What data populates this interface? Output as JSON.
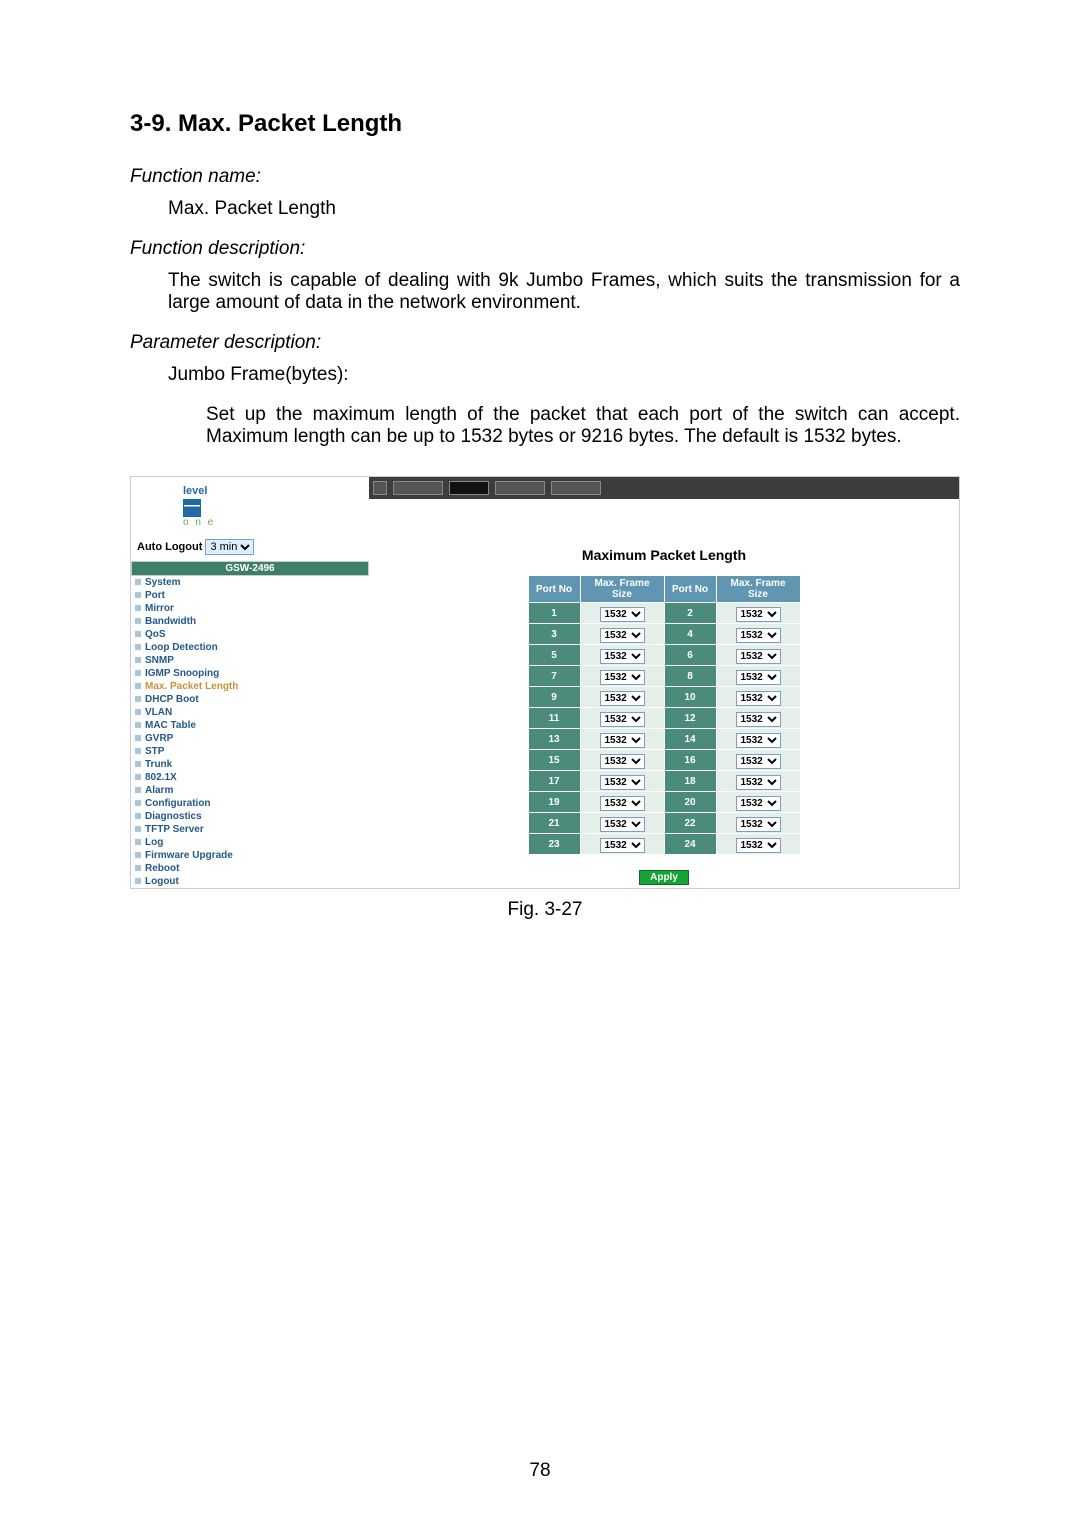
{
  "section": {
    "title": "3-9. Max. Packet Length",
    "function_name_label": "Function name:",
    "function_name_value": "Max. Packet Length",
    "function_desc_label": "Function description:",
    "function_desc_value": "The switch is capable of dealing with 9k Jumbo Frames, which suits the transmission for a large amount of data in the network environment.",
    "param_desc_label": "Parameter description:",
    "param_item_label": "Jumbo Frame(bytes):",
    "param_item_value": "Set up the maximum length of the packet that each port of the switch can accept. Maximum length can be up to 1532 bytes or 9216 bytes. The default is 1532 bytes."
  },
  "screenshot": {
    "logo_text": "level",
    "logo_sub": "o n e",
    "auto_logout_label": "Auto Logout",
    "auto_logout_value": "3 min",
    "device_name": "GSW-2496",
    "nav_items": [
      {
        "label": "System",
        "active": false
      },
      {
        "label": "Port",
        "active": false
      },
      {
        "label": "Mirror",
        "active": false
      },
      {
        "label": "Bandwidth",
        "active": false
      },
      {
        "label": "QoS",
        "active": false
      },
      {
        "label": "Loop Detection",
        "active": false
      },
      {
        "label": "SNMP",
        "active": false
      },
      {
        "label": "IGMP Snooping",
        "active": false
      },
      {
        "label": "Max. Packet Length",
        "active": true
      },
      {
        "label": "DHCP Boot",
        "active": false
      },
      {
        "label": "VLAN",
        "active": false
      },
      {
        "label": "MAC Table",
        "active": false
      },
      {
        "label": "GVRP",
        "active": false
      },
      {
        "label": "STP",
        "active": false
      },
      {
        "label": "Trunk",
        "active": false
      },
      {
        "label": "802.1X",
        "active": false
      },
      {
        "label": "Alarm",
        "active": false
      },
      {
        "label": "Configuration",
        "active": false
      },
      {
        "label": "Diagnostics",
        "active": false
      },
      {
        "label": "TFTP Server",
        "active": false
      },
      {
        "label": "Log",
        "active": false
      },
      {
        "label": "Firmware Upgrade",
        "active": false
      },
      {
        "label": "Reboot",
        "active": false
      },
      {
        "label": "Logout",
        "active": false
      }
    ],
    "panel_title": "Maximum Packet Length",
    "table_headers": {
      "port_no": "Port No",
      "max_frame": "Max. Frame Size"
    },
    "rows": [
      {
        "p1": "1",
        "v1": "1532",
        "p2": "2",
        "v2": "1532"
      },
      {
        "p1": "3",
        "v1": "1532",
        "p2": "4",
        "v2": "1532"
      },
      {
        "p1": "5",
        "v1": "1532",
        "p2": "6",
        "v2": "1532"
      },
      {
        "p1": "7",
        "v1": "1532",
        "p2": "8",
        "v2": "1532"
      },
      {
        "p1": "9",
        "v1": "1532",
        "p2": "10",
        "v2": "1532"
      },
      {
        "p1": "11",
        "v1": "1532",
        "p2": "12",
        "v2": "1532"
      },
      {
        "p1": "13",
        "v1": "1532",
        "p2": "14",
        "v2": "1532"
      },
      {
        "p1": "15",
        "v1": "1532",
        "p2": "16",
        "v2": "1532"
      },
      {
        "p1": "17",
        "v1": "1532",
        "p2": "18",
        "v2": "1532"
      },
      {
        "p1": "19",
        "v1": "1532",
        "p2": "20",
        "v2": "1532"
      },
      {
        "p1": "21",
        "v1": "1532",
        "p2": "22",
        "v2": "1532"
      },
      {
        "p1": "23",
        "v1": "1532",
        "p2": "24",
        "v2": "1532"
      }
    ],
    "apply_label": "Apply"
  },
  "figure_caption": "Fig. 3-27",
  "page_number": "78"
}
